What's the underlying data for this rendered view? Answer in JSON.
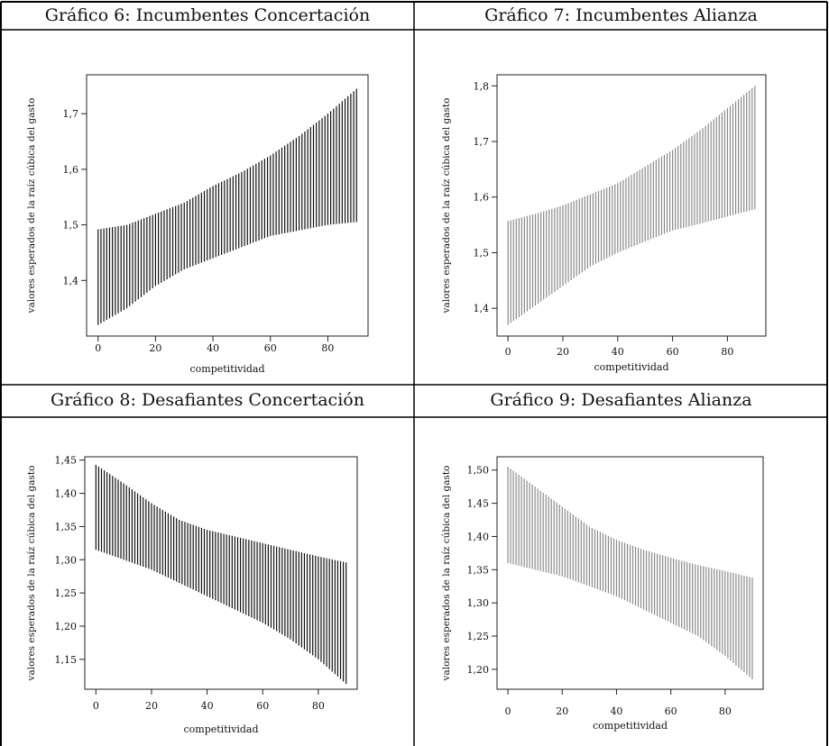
{
  "panels": [
    {
      "title": "Gráfico 6: Incumbentes Concertación",
      "chart_data": {
        "type": "errorbar-interval",
        "color": "#111111",
        "xlabel": "competitividad",
        "ylabel": "valores esperados de la raíz cúbica del gasto",
        "x_ticks": [
          "0",
          "20",
          "40",
          "60",
          "80"
        ],
        "y_ticks": [
          "1,4",
          "1,5",
          "1,6",
          "1,7"
        ],
        "xlim": [
          -4,
          94
        ],
        "ylim": [
          1.3,
          1.77
        ],
        "x_range": [
          0,
          90
        ],
        "n_intervals": 91,
        "lower": [
          [
            0,
            1.32
          ],
          [
            10,
            1.35
          ],
          [
            20,
            1.39
          ],
          [
            30,
            1.42
          ],
          [
            40,
            1.44
          ],
          [
            50,
            1.46
          ],
          [
            60,
            1.48
          ],
          [
            70,
            1.49
          ],
          [
            80,
            1.5
          ],
          [
            90,
            1.505
          ]
        ],
        "upper": [
          [
            0,
            1.492
          ],
          [
            10,
            1.5
          ],
          [
            20,
            1.52
          ],
          [
            30,
            1.54
          ],
          [
            40,
            1.57
          ],
          [
            50,
            1.595
          ],
          [
            60,
            1.625
          ],
          [
            70,
            1.66
          ],
          [
            80,
            1.7
          ],
          [
            90,
            1.745
          ]
        ]
      }
    },
    {
      "title": "Gráfico 7: Incumbentes Alianza",
      "chart_data": {
        "type": "errorbar-interval",
        "color": "#8a8a8a",
        "xlabel": "competitividad",
        "ylabel": "valores esperados de la raíz cúbica del gasto",
        "x_ticks": [
          "0",
          "20",
          "40",
          "60",
          "80"
        ],
        "y_ticks": [
          "1,4",
          "1,5",
          "1,6",
          "1,7",
          "1,8"
        ],
        "xlim": [
          -4,
          94
        ],
        "ylim": [
          1.35,
          1.82
        ],
        "x_range": [
          0,
          90
        ],
        "n_intervals": 91,
        "lower": [
          [
            0,
            1.37
          ],
          [
            10,
            1.405
          ],
          [
            20,
            1.44
          ],
          [
            30,
            1.475
          ],
          [
            40,
            1.5
          ],
          [
            50,
            1.52
          ],
          [
            60,
            1.54
          ],
          [
            70,
            1.552
          ],
          [
            80,
            1.565
          ],
          [
            90,
            1.578
          ]
        ],
        "upper": [
          [
            0,
            1.557
          ],
          [
            10,
            1.57
          ],
          [
            20,
            1.585
          ],
          [
            30,
            1.605
          ],
          [
            40,
            1.625
          ],
          [
            50,
            1.655
          ],
          [
            60,
            1.685
          ],
          [
            70,
            1.72
          ],
          [
            80,
            1.76
          ],
          [
            90,
            1.8
          ]
        ]
      }
    },
    {
      "title": "Gráfico 8: Desafiantes Concertación",
      "chart_data": {
        "type": "errorbar-interval",
        "color": "#111111",
        "xlabel": "competitividad",
        "ylabel": "valores esperados de la raíz cúbica del gasto",
        "x_ticks": [
          "0",
          "20",
          "40",
          "60",
          "80"
        ],
        "y_ticks": [
          "1,15",
          "1,20",
          "1,25",
          "1,30",
          "1,35",
          "1,40",
          "1,45"
        ],
        "xlim": [
          -4,
          94
        ],
        "ylim": [
          1.105,
          1.455
        ],
        "x_range": [
          0,
          90
        ],
        "n_intervals": 91,
        "lower": [
          [
            0,
            1.315
          ],
          [
            10,
            1.3
          ],
          [
            20,
            1.285
          ],
          [
            30,
            1.265
          ],
          [
            40,
            1.245
          ],
          [
            50,
            1.225
          ],
          [
            60,
            1.205
          ],
          [
            70,
            1.18
          ],
          [
            80,
            1.15
          ],
          [
            90,
            1.113
          ]
        ],
        "upper": [
          [
            0,
            1.443
          ],
          [
            10,
            1.415
          ],
          [
            20,
            1.385
          ],
          [
            30,
            1.36
          ],
          [
            40,
            1.345
          ],
          [
            50,
            1.335
          ],
          [
            60,
            1.325
          ],
          [
            70,
            1.315
          ],
          [
            80,
            1.305
          ],
          [
            90,
            1.296
          ]
        ]
      }
    },
    {
      "title": "Gráfico 9: Desafiantes Alianza",
      "chart_data": {
        "type": "errorbar-interval",
        "color": "#8a8a8a",
        "xlabel": "competitividad",
        "ylabel": "valores esperados de la raíz cúbica del gasto",
        "x_ticks": [
          "0",
          "20",
          "40",
          "60",
          "80"
        ],
        "y_ticks": [
          "1,20",
          "1,25",
          "1,30",
          "1,35",
          "1,40",
          "1,45",
          "1,50"
        ],
        "xlim": [
          -4,
          94
        ],
        "ylim": [
          1.17,
          1.52
        ],
        "x_range": [
          0,
          90
        ],
        "n_intervals": 91,
        "lower": [
          [
            0,
            1.36
          ],
          [
            10,
            1.35
          ],
          [
            20,
            1.34
          ],
          [
            30,
            1.325
          ],
          [
            40,
            1.31
          ],
          [
            50,
            1.29
          ],
          [
            60,
            1.27
          ],
          [
            70,
            1.25
          ],
          [
            80,
            1.22
          ],
          [
            90,
            1.185
          ]
        ],
        "upper": [
          [
            0,
            1.505
          ],
          [
            10,
            1.475
          ],
          [
            20,
            1.445
          ],
          [
            30,
            1.415
          ],
          [
            40,
            1.395
          ],
          [
            50,
            1.38
          ],
          [
            60,
            1.368
          ],
          [
            70,
            1.357
          ],
          [
            80,
            1.348
          ],
          [
            90,
            1.338
          ]
        ]
      }
    }
  ]
}
